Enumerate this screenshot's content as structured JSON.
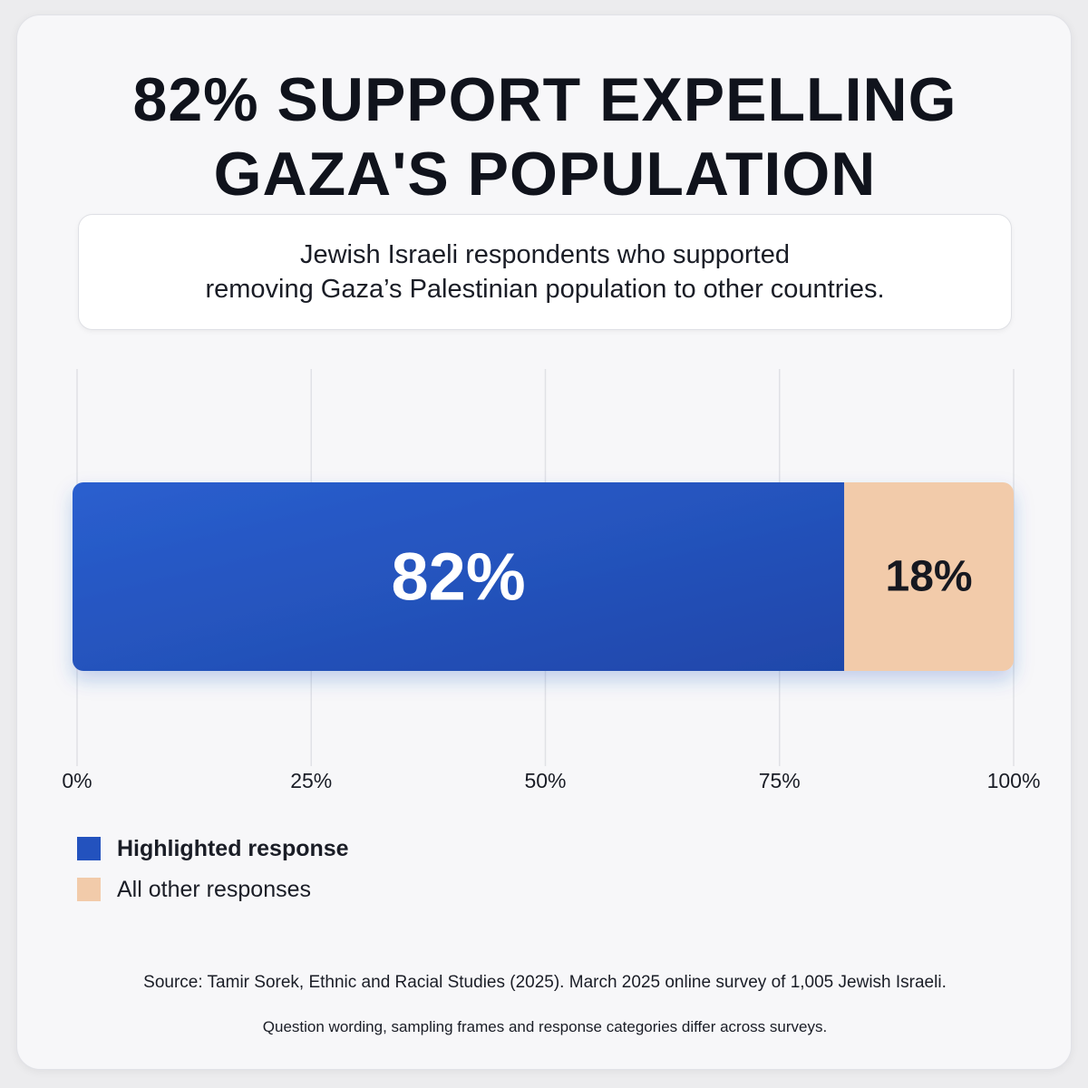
{
  "title_lines": [
    "82% SUPPORT EXPELLING",
    "GAZA'S POPULATION"
  ],
  "subtitle_lines": [
    "Jewish Israeli respondents who supported",
    "removing Gaza’s Palestinian population to other countries."
  ],
  "chart_data": {
    "type": "bar",
    "orientation": "horizontal-stacked",
    "xlim": [
      0,
      100
    ],
    "x_ticks": [
      0,
      25,
      50,
      75,
      100
    ],
    "x_tick_labels": [
      "0%",
      "25%",
      "50%",
      "75%",
      "100%"
    ],
    "grid": true,
    "legend_placement": "bottom-left",
    "series": [
      {
        "name": "Highlighted response",
        "value": 82,
        "label": "82%",
        "color": "#2352be",
        "label_color": "#ffffff"
      },
      {
        "name": "All other responses",
        "value": 18,
        "label": "18%",
        "color": "#f2cbaa",
        "label_color": "#161820"
      }
    ]
  },
  "legend": [
    {
      "label": "Highlighted response",
      "color": "#2352be"
    },
    {
      "label": "All other responses",
      "color": "#f2cbaa"
    }
  ],
  "source": "Source: Tamir Sorek, Ethnic and Racial Studies (2025). March 2025 online survey of 1,005 Jewish Israeli.",
  "note": "Question wording, sampling frames and response categories differ across surveys."
}
